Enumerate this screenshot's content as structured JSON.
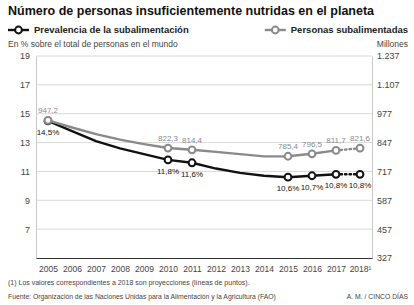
{
  "chart_data": {
    "type": "line",
    "title": "Número de personas insuficientemente nutridas en el planeta",
    "ylabel": "En % sobre el total de personas en el mundo",
    "y2label": "Millones",
    "x": [
      2005,
      2006,
      2007,
      2008,
      2009,
      2010,
      2011,
      2012,
      2013,
      2014,
      2015,
      2016,
      2017,
      2018
    ],
    "xlim": [
      2004.5,
      2018.5
    ],
    "xticks": [
      2005,
      2006,
      2007,
      2008,
      2009,
      2010,
      2011,
      2012,
      2013,
      2014,
      2015,
      2016,
      2017,
      {
        "value": 2018,
        "label": "2018¹"
      }
    ],
    "ylim": [
      5,
      19
    ],
    "yticks": [
      7,
      9,
      11,
      13,
      15,
      17,
      19
    ],
    "y2lim": [
      327,
      1237
    ],
    "y2ticks": [
      327,
      457,
      587,
      717,
      847,
      977,
      {
        "value": 1107,
        "label": "1.107"
      },
      {
        "value": 1237,
        "label": "1.237"
      }
    ],
    "grid": true,
    "legend": "top",
    "data_labels": true,
    "marker": "circle",
    "series": [
      {
        "name": "Prevalencia de la subalimentación",
        "color": "#111111",
        "axis": "y",
        "values": [
          14.5,
          13.8,
          13.1,
          12.6,
          12.2,
          11.8,
          11.6,
          11.2,
          10.9,
          10.7,
          10.6,
          10.7,
          10.8,
          10.8
        ],
        "value_labels": [
          "14,5%",
          null,
          null,
          null,
          null,
          "11,8%",
          "11,6%",
          null,
          null,
          null,
          "10,6%",
          "10,7%",
          "10,8%",
          "10,8%"
        ]
      },
      {
        "name": "Personas subalimentadas",
        "color": "#8a8a8a",
        "axis": "y2",
        "values": [
          947.2,
          915,
          885,
          860,
          840,
          822.3,
          814.4,
          805,
          795,
          785,
          785.4,
          796.5,
          811.7,
          821.6
        ],
        "value_labels": [
          "947,2",
          null,
          null,
          null,
          null,
          "822,3",
          "814,4",
          null,
          null,
          null,
          "785,4",
          "796,5",
          "811,7",
          "821,6"
        ]
      }
    ],
    "footnote": "(1) Los valores correspondientes a 2018 son proyecciones (líneas de puntos).",
    "source": "Fuente: Organización de las Naciones Unidas para la Alimentación y la Agricultura (FAO)",
    "credit": "A. M. / CINCO DÍAS"
  }
}
